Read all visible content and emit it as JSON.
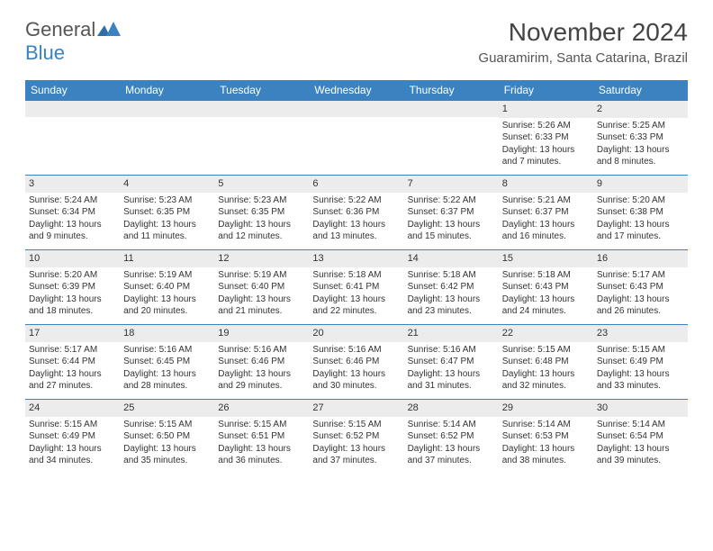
{
  "logo": {
    "general": "General",
    "blue": "Blue"
  },
  "title": "November 2024",
  "location": "Guaramirim, Santa Catarina, Brazil",
  "colors": {
    "header_bg": "#3b83c0",
    "header_text": "#ffffff",
    "daynum_bg": "#ececec",
    "rule": "#3b83c0",
    "text": "#333333"
  },
  "day_headers": [
    "Sunday",
    "Monday",
    "Tuesday",
    "Wednesday",
    "Thursday",
    "Friday",
    "Saturday"
  ],
  "weeks": [
    [
      {
        "n": "",
        "sunrise": "",
        "sunset": "",
        "daylight": ""
      },
      {
        "n": "",
        "sunrise": "",
        "sunset": "",
        "daylight": ""
      },
      {
        "n": "",
        "sunrise": "",
        "sunset": "",
        "daylight": ""
      },
      {
        "n": "",
        "sunrise": "",
        "sunset": "",
        "daylight": ""
      },
      {
        "n": "",
        "sunrise": "",
        "sunset": "",
        "daylight": ""
      },
      {
        "n": "1",
        "sunrise": "Sunrise: 5:26 AM",
        "sunset": "Sunset: 6:33 PM",
        "daylight": "Daylight: 13 hours and 7 minutes."
      },
      {
        "n": "2",
        "sunrise": "Sunrise: 5:25 AM",
        "sunset": "Sunset: 6:33 PM",
        "daylight": "Daylight: 13 hours and 8 minutes."
      }
    ],
    [
      {
        "n": "3",
        "sunrise": "Sunrise: 5:24 AM",
        "sunset": "Sunset: 6:34 PM",
        "daylight": "Daylight: 13 hours and 9 minutes."
      },
      {
        "n": "4",
        "sunrise": "Sunrise: 5:23 AM",
        "sunset": "Sunset: 6:35 PM",
        "daylight": "Daylight: 13 hours and 11 minutes."
      },
      {
        "n": "5",
        "sunrise": "Sunrise: 5:23 AM",
        "sunset": "Sunset: 6:35 PM",
        "daylight": "Daylight: 13 hours and 12 minutes."
      },
      {
        "n": "6",
        "sunrise": "Sunrise: 5:22 AM",
        "sunset": "Sunset: 6:36 PM",
        "daylight": "Daylight: 13 hours and 13 minutes."
      },
      {
        "n": "7",
        "sunrise": "Sunrise: 5:22 AM",
        "sunset": "Sunset: 6:37 PM",
        "daylight": "Daylight: 13 hours and 15 minutes."
      },
      {
        "n": "8",
        "sunrise": "Sunrise: 5:21 AM",
        "sunset": "Sunset: 6:37 PM",
        "daylight": "Daylight: 13 hours and 16 minutes."
      },
      {
        "n": "9",
        "sunrise": "Sunrise: 5:20 AM",
        "sunset": "Sunset: 6:38 PM",
        "daylight": "Daylight: 13 hours and 17 minutes."
      }
    ],
    [
      {
        "n": "10",
        "sunrise": "Sunrise: 5:20 AM",
        "sunset": "Sunset: 6:39 PM",
        "daylight": "Daylight: 13 hours and 18 minutes."
      },
      {
        "n": "11",
        "sunrise": "Sunrise: 5:19 AM",
        "sunset": "Sunset: 6:40 PM",
        "daylight": "Daylight: 13 hours and 20 minutes."
      },
      {
        "n": "12",
        "sunrise": "Sunrise: 5:19 AM",
        "sunset": "Sunset: 6:40 PM",
        "daylight": "Daylight: 13 hours and 21 minutes."
      },
      {
        "n": "13",
        "sunrise": "Sunrise: 5:18 AM",
        "sunset": "Sunset: 6:41 PM",
        "daylight": "Daylight: 13 hours and 22 minutes."
      },
      {
        "n": "14",
        "sunrise": "Sunrise: 5:18 AM",
        "sunset": "Sunset: 6:42 PM",
        "daylight": "Daylight: 13 hours and 23 minutes."
      },
      {
        "n": "15",
        "sunrise": "Sunrise: 5:18 AM",
        "sunset": "Sunset: 6:43 PM",
        "daylight": "Daylight: 13 hours and 24 minutes."
      },
      {
        "n": "16",
        "sunrise": "Sunrise: 5:17 AM",
        "sunset": "Sunset: 6:43 PM",
        "daylight": "Daylight: 13 hours and 26 minutes."
      }
    ],
    [
      {
        "n": "17",
        "sunrise": "Sunrise: 5:17 AM",
        "sunset": "Sunset: 6:44 PM",
        "daylight": "Daylight: 13 hours and 27 minutes."
      },
      {
        "n": "18",
        "sunrise": "Sunrise: 5:16 AM",
        "sunset": "Sunset: 6:45 PM",
        "daylight": "Daylight: 13 hours and 28 minutes."
      },
      {
        "n": "19",
        "sunrise": "Sunrise: 5:16 AM",
        "sunset": "Sunset: 6:46 PM",
        "daylight": "Daylight: 13 hours and 29 minutes."
      },
      {
        "n": "20",
        "sunrise": "Sunrise: 5:16 AM",
        "sunset": "Sunset: 6:46 PM",
        "daylight": "Daylight: 13 hours and 30 minutes."
      },
      {
        "n": "21",
        "sunrise": "Sunrise: 5:16 AM",
        "sunset": "Sunset: 6:47 PM",
        "daylight": "Daylight: 13 hours and 31 minutes."
      },
      {
        "n": "22",
        "sunrise": "Sunrise: 5:15 AM",
        "sunset": "Sunset: 6:48 PM",
        "daylight": "Daylight: 13 hours and 32 minutes."
      },
      {
        "n": "23",
        "sunrise": "Sunrise: 5:15 AM",
        "sunset": "Sunset: 6:49 PM",
        "daylight": "Daylight: 13 hours and 33 minutes."
      }
    ],
    [
      {
        "n": "24",
        "sunrise": "Sunrise: 5:15 AM",
        "sunset": "Sunset: 6:49 PM",
        "daylight": "Daylight: 13 hours and 34 minutes."
      },
      {
        "n": "25",
        "sunrise": "Sunrise: 5:15 AM",
        "sunset": "Sunset: 6:50 PM",
        "daylight": "Daylight: 13 hours and 35 minutes."
      },
      {
        "n": "26",
        "sunrise": "Sunrise: 5:15 AM",
        "sunset": "Sunset: 6:51 PM",
        "daylight": "Daylight: 13 hours and 36 minutes."
      },
      {
        "n": "27",
        "sunrise": "Sunrise: 5:15 AM",
        "sunset": "Sunset: 6:52 PM",
        "daylight": "Daylight: 13 hours and 37 minutes."
      },
      {
        "n": "28",
        "sunrise": "Sunrise: 5:14 AM",
        "sunset": "Sunset: 6:52 PM",
        "daylight": "Daylight: 13 hours and 37 minutes."
      },
      {
        "n": "29",
        "sunrise": "Sunrise: 5:14 AM",
        "sunset": "Sunset: 6:53 PM",
        "daylight": "Daylight: 13 hours and 38 minutes."
      },
      {
        "n": "30",
        "sunrise": "Sunrise: 5:14 AM",
        "sunset": "Sunset: 6:54 PM",
        "daylight": "Daylight: 13 hours and 39 minutes."
      }
    ]
  ]
}
